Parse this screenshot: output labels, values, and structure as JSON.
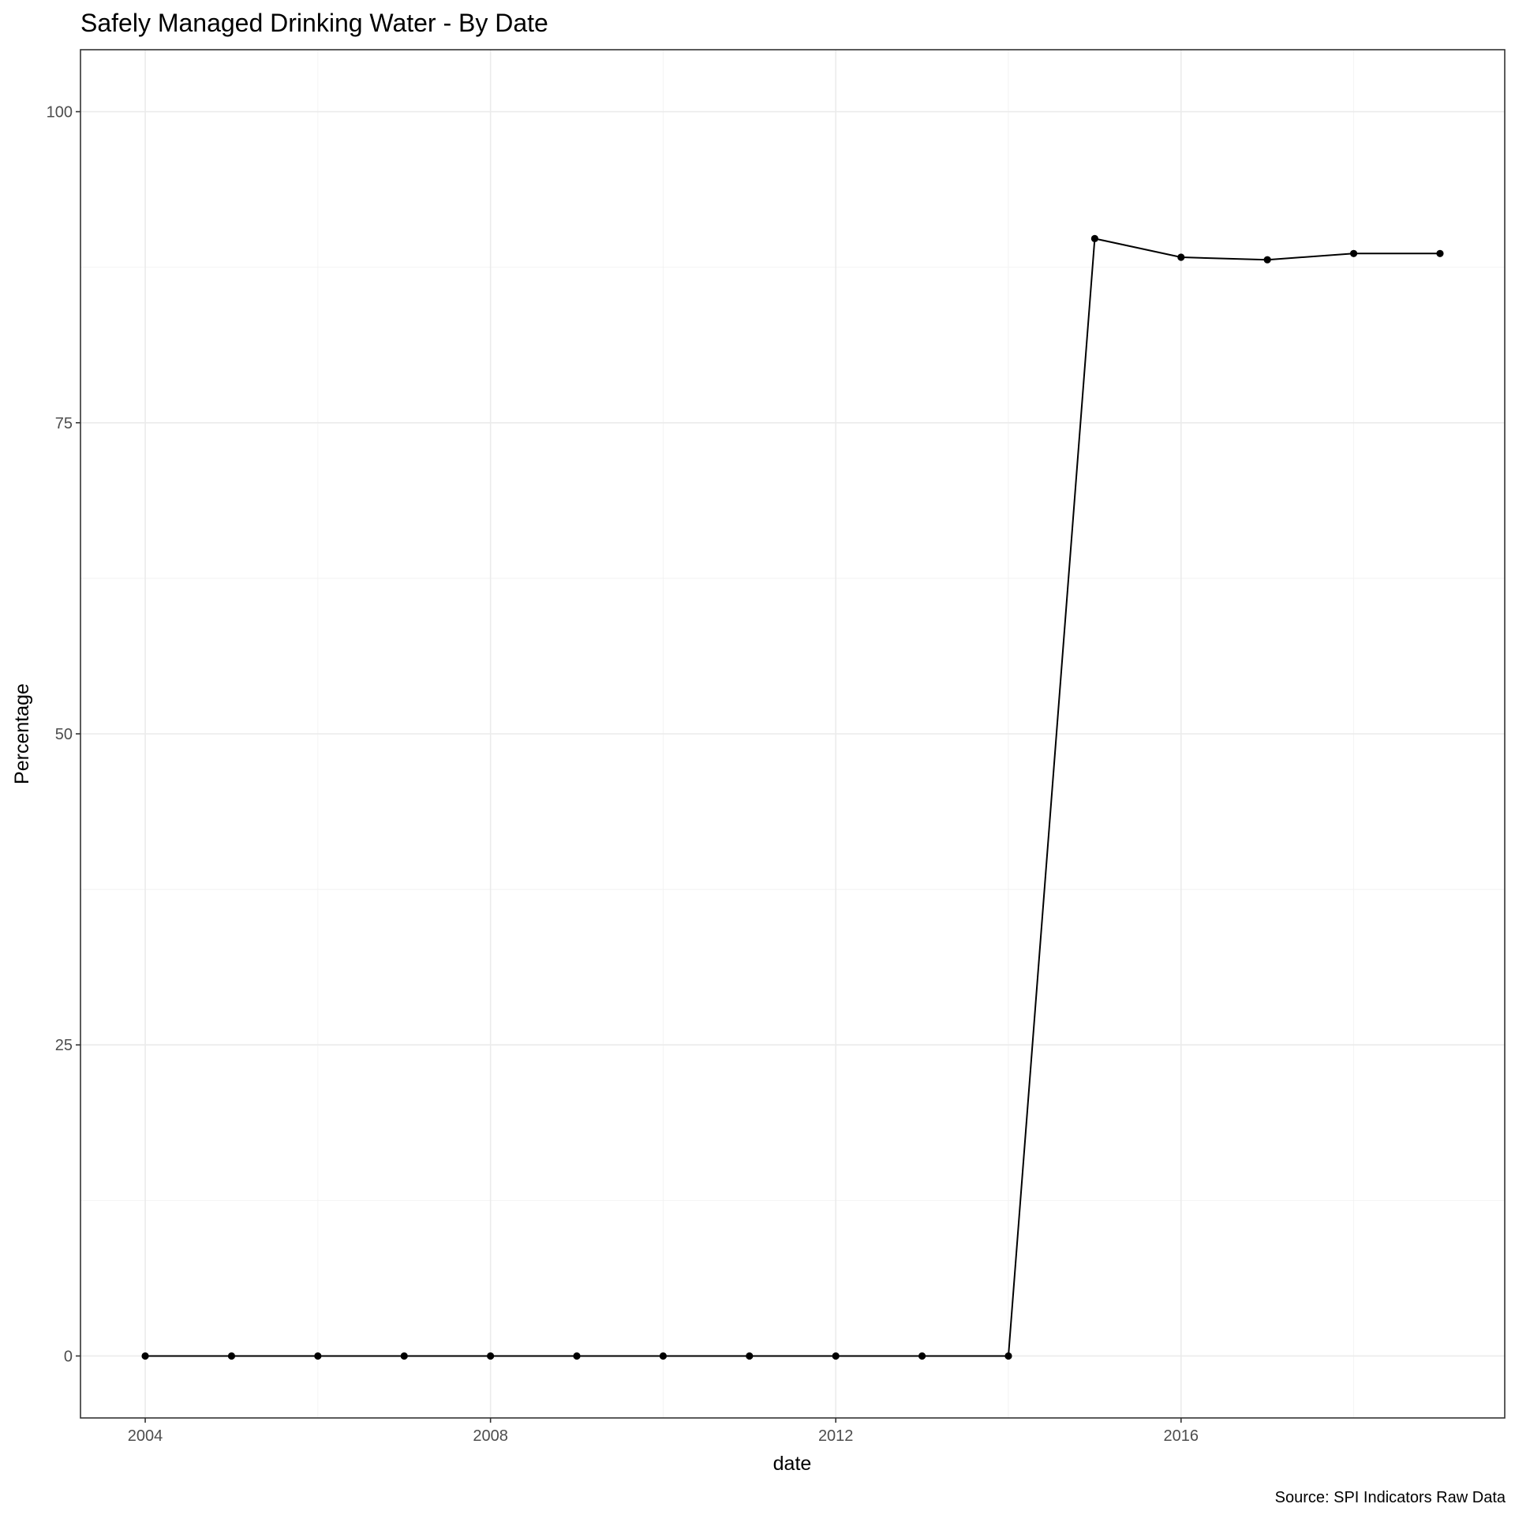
{
  "chart_data": {
    "type": "line",
    "title": "Safely Managed Drinking Water - By Date",
    "xlabel": "date",
    "ylabel": "Percentage",
    "caption": "Source: SPI Indicators Raw Data",
    "x": [
      2004,
      2005,
      2006,
      2007,
      2008,
      2009,
      2010,
      2011,
      2012,
      2013,
      2014,
      2015,
      2016,
      2017,
      2018,
      2019
    ],
    "series": [
      {
        "values": [
          0,
          0,
          0,
          0,
          0,
          0,
          0,
          0,
          0,
          0,
          0,
          89.8,
          88.3,
          88.1,
          88.6,
          88.6
        ]
      }
    ],
    "xlim": [
      2003.25,
      2019.75
    ],
    "ylim": [
      -4.98,
      104.98
    ],
    "x_ticks": [
      2004,
      2008,
      2012,
      2016
    ],
    "x_tick_labels": [
      "2004",
      "2008",
      "2012",
      "2016"
    ],
    "y_ticks": [
      0,
      25,
      50,
      75,
      100
    ],
    "y_tick_labels": [
      "0",
      "25",
      "50",
      "75",
      "100"
    ],
    "grid": true,
    "line_color": "#000000",
    "point_color": "#000000"
  }
}
